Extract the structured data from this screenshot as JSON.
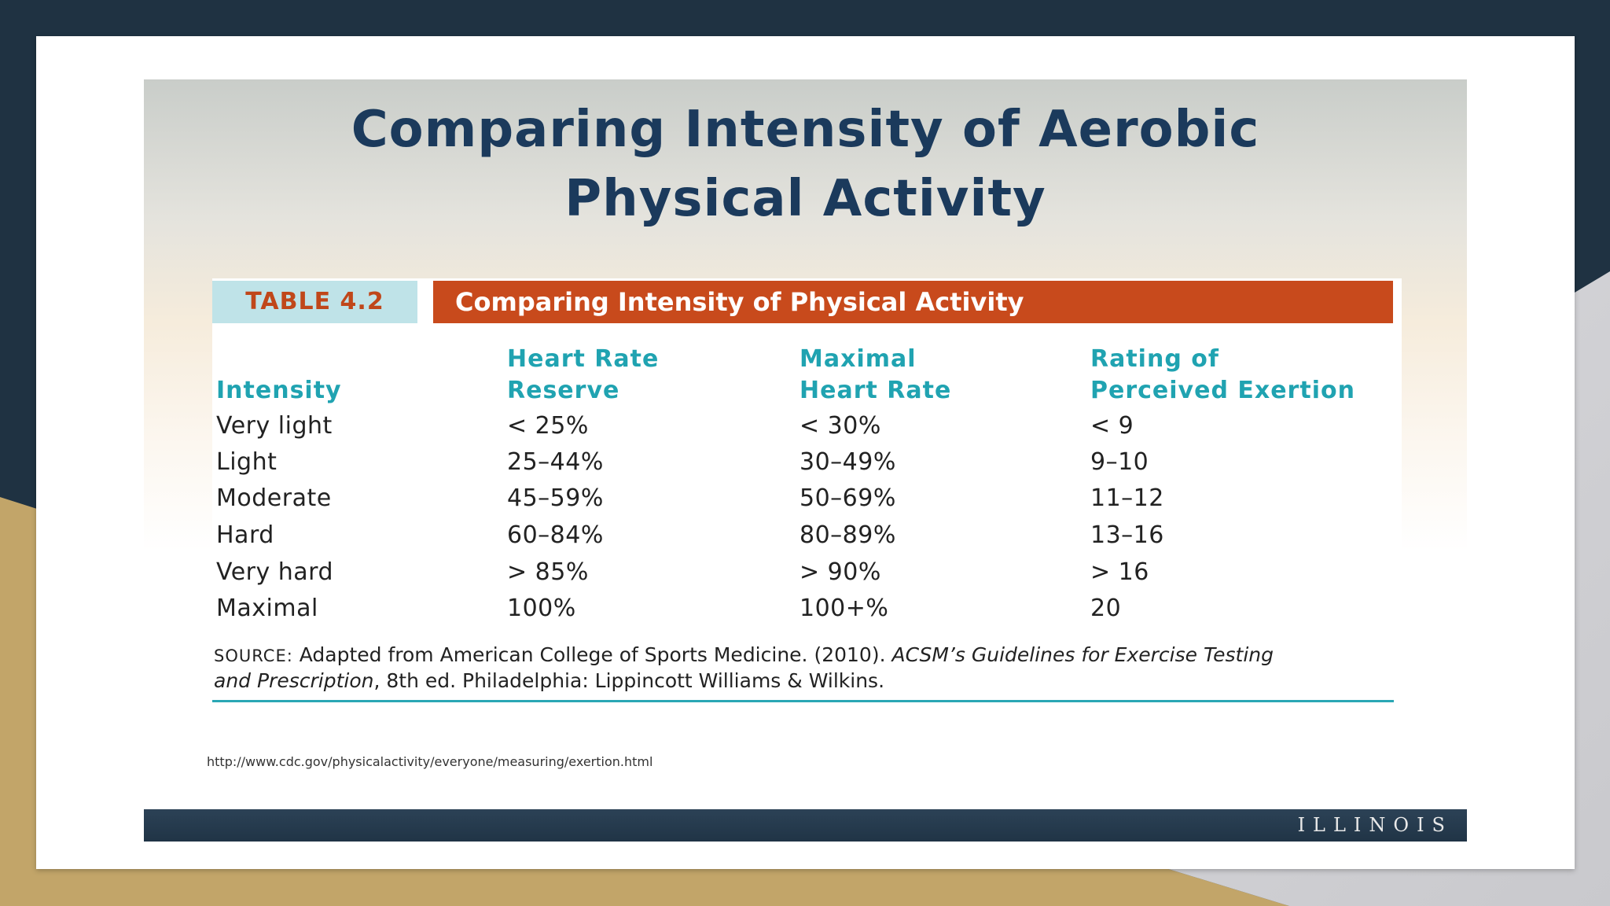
{
  "slide": {
    "title_line1": "Comparing Intensity of Aerobic",
    "title_line2": "Physical Activity",
    "url": "http://www.cdc.gov/physicalactivity/everyone/measuring/exertion.html",
    "footer_logo": "ILLINOIS"
  },
  "table": {
    "tag": "TABLE 4.2",
    "banner": "Comparing Intensity of Physical Activity",
    "headers": [
      [
        "",
        "Intensity"
      ],
      [
        "Heart Rate",
        "Reserve"
      ],
      [
        "Maximal",
        "Heart Rate"
      ],
      [
        "Rating of",
        "Perceived Exertion"
      ]
    ],
    "rows": [
      [
        "Very light",
        "< 25%",
        "< 30%",
        "< 9"
      ],
      [
        "Light",
        "25–44%",
        "30–49%",
        "9–10"
      ],
      [
        "Moderate",
        "45–59%",
        "50–69%",
        "11–12"
      ],
      [
        "Hard",
        "60–84%",
        "80–89%",
        "13–16"
      ],
      [
        "Very hard",
        "> 85%",
        "> 90%",
        "> 16"
      ],
      [
        "Maximal",
        "100%",
        "100+%",
        "20"
      ]
    ],
    "source": {
      "label": "SOURCE:",
      "text1": "Adapted from American College of Sports Medicine. (2010).",
      "italic1": "ACSM’s Guidelines for Exercise Testing",
      "italic2": "and Prescription",
      "text2": ", 8th ed. Philadelphia: Lippincott Williams & Wilkins."
    }
  },
  "colors": {
    "title": "#1b3a5c",
    "header_teal": "#20a3b1",
    "banner_orange": "#c84a1c",
    "tag_bg": "#bfe3e8",
    "footer_bar": "#203446",
    "frame_navy": "#1f3242",
    "frame_gold": "#c2a569"
  }
}
